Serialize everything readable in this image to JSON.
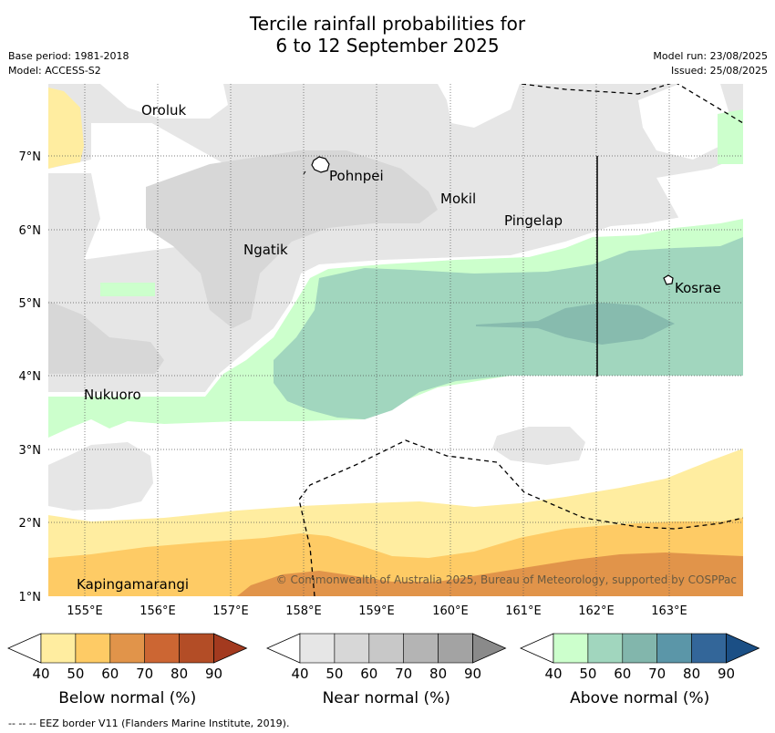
{
  "title": {
    "line1": "Tercile rainfall probabilities for",
    "line2": "6 to 12 September 2025"
  },
  "header_left": {
    "base_period": "Base period: 1981-2018",
    "model": "Model: ACCESS-S2"
  },
  "header_right": {
    "model_run": "Model run: 23/08/2025",
    "issued": "Issued: 25/08/2025"
  },
  "map": {
    "x_ticks": [
      "155°E",
      "156°E",
      "157°E",
      "158°E",
      "159°E",
      "160°E",
      "161°E",
      "162°E",
      "163°E"
    ],
    "y_ticks": [
      "7°N",
      "6°N",
      "5°N",
      "4°N",
      "3°N",
      "2°N",
      "1°N"
    ],
    "places": [
      "Oroluk",
      "Pohnpei",
      "Mokil",
      "Pingelap",
      "Ngatik",
      "Kosrae",
      "Nukuoro",
      "Kapingamarangi"
    ],
    "copyright": "© Commonwealth of Australia 2025, Bureau of Meteorology, supported by COSPPac"
  },
  "colorbars": [
    {
      "title": "Below normal (%)",
      "ticks": [
        "40",
        "50",
        "60",
        "70",
        "80",
        "90"
      ],
      "colors": [
        "#ffeda0",
        "#fecb65",
        "#e1944a",
        "#cc6633",
        "#b34d26",
        "#a33a1f"
      ]
    },
    {
      "title": "Near normal (%)",
      "ticks": [
        "40",
        "50",
        "60",
        "70",
        "80",
        "90"
      ],
      "colors": [
        "#e6e6e6",
        "#d7d7d7",
        "#c8c8c8",
        "#b4b4b4",
        "#a3a3a3",
        "#8a8a8a"
      ]
    },
    {
      "title": "Above normal (%)",
      "ticks": [
        "40",
        "50",
        "60",
        "70",
        "80",
        "90"
      ],
      "colors": [
        "#ccffcc",
        "#a1d6be",
        "#82b6ac",
        "#5b96a8",
        "#336699",
        "#1b4f85"
      ]
    }
  ],
  "footer": "--  --  -- EEZ border V11 (Flanders Marine Institute, 2019)."
}
